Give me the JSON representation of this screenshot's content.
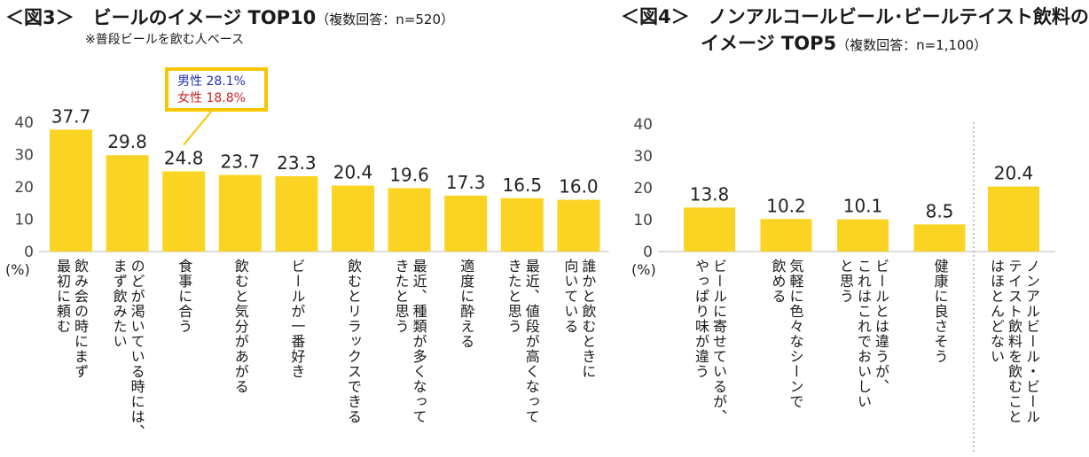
{
  "figure3": {
    "heading": "＜図3＞　ビールのイメージ TOP10",
    "note": "（複数回答：n=520）",
    "subtitle": "※普段ビールを飲む人ベース",
    "callout": {
      "male": "男性 28.1%",
      "female": "女性 18.8%"
    }
  },
  "figure4": {
    "heading_line1": "＜図4＞　ノンアルコールビール･ビールテイスト飲料の",
    "heading_line2": "イメージ TOP5",
    "note": "（複数回答：n=1,100）"
  },
  "chart_data": [
    {
      "type": "bar",
      "title": "ビールのイメージ TOP10",
      "ylabel": "(%)",
      "ylim": [
        0,
        40
      ],
      "yticks": [
        0,
        10,
        20,
        30,
        40
      ],
      "bar_color": "#fbd423",
      "categories": [
        "飲み会の時にまず\n最初に頼む",
        "のどが渇いている時には、\nまず飲みたい",
        "食事に合う",
        "飲むと気分があがる",
        "ビールが一番好き",
        "飲むとリラックスできる",
        "最近、種類が多くなって\nきたと思う",
        "適度に酔える",
        "最近、値段が高くなって\nきたと思う",
        "誰かと飲むときに\n向いている"
      ],
      "values": [
        37.7,
        29.8,
        24.8,
        23.7,
        23.3,
        20.4,
        19.6,
        17.3,
        16.5,
        16.0
      ]
    },
    {
      "type": "bar",
      "title": "ノンアルコールビール･ビールテイスト飲料のイメージ TOP5",
      "ylabel": "(%)",
      "ylim": [
        0,
        40
      ],
      "yticks": [
        0,
        10,
        20,
        30,
        40
      ],
      "bar_color": "#fbd423",
      "categories": [
        "ビールに寄せているが、\nやっぱり味が違う",
        "気軽に色々なシーンで\n飲める",
        "ビールとは違うが、\nこれはこれでおいしい\nと思う",
        "健康に良さそう",
        "ノンアルビール・ビール\nテイスト飲料を飲むこと\nはほとんどない"
      ],
      "values": [
        13.8,
        10.2,
        10.1,
        8.5,
        20.4
      ]
    }
  ]
}
